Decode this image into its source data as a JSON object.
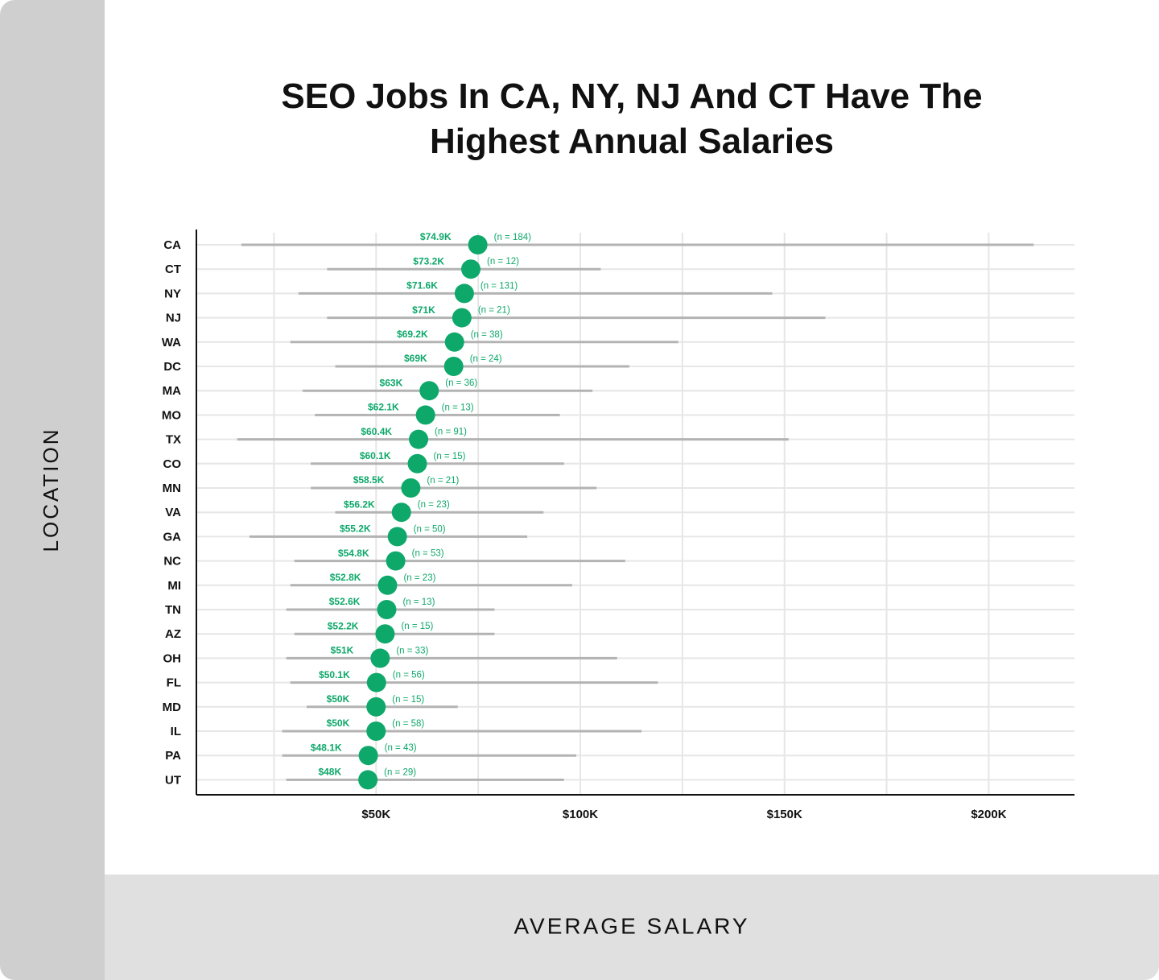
{
  "chart_data": {
    "type": "dot-range",
    "title": "SEO Jobs In CA, NY, NJ And CT Have The Highest Annual Salaries",
    "xlabel": "AVERAGE SALARY",
    "ylabel": "LOCATION",
    "categories": [
      "CA",
      "CT",
      "NY",
      "NJ",
      "WA",
      "DC",
      "MA",
      "MO",
      "TX",
      "CO",
      "MN",
      "VA",
      "GA",
      "NC",
      "MI",
      "TN",
      "AZ",
      "OH",
      "FL",
      "MD",
      "IL",
      "PA",
      "UT"
    ],
    "values": [
      74.9,
      73.2,
      71.6,
      71,
      69.2,
      69,
      63,
      62.1,
      60.4,
      60.1,
      58.5,
      56.2,
      55.2,
      54.8,
      52.8,
      52.6,
      52.2,
      51,
      50.1,
      50,
      50,
      48.1,
      48
    ],
    "value_labels": [
      "$74.9K",
      "$73.2K",
      "$71.6K",
      "$71K",
      "$69.2K",
      "$69K",
      "$63K",
      "$62.1K",
      "$60.4K",
      "$60.1K",
      "$58.5K",
      "$56.2K",
      "$55.2K",
      "$54.8K",
      "$52.8K",
      "$52.6K",
      "$52.2K",
      "$51K",
      "$50.1K",
      "$50K",
      "$50K",
      "$48.1K",
      "$48K"
    ],
    "n_labels": [
      "(n = 184)",
      "(n = 12)",
      "(n = 131)",
      "(n = 21)",
      "(n = 38)",
      "(n = 24)",
      "(n = 36)",
      "(n = 13)",
      "(n = 91)",
      "(n = 15)",
      "(n = 21)",
      "(n = 23)",
      "(n = 50)",
      "(n = 53)",
      "(n = 23)",
      "(n = 13)",
      "(n = 15)",
      "(n = 33)",
      "(n = 56)",
      "(n = 15)",
      "(n = 58)",
      "(n = 43)",
      "(n = 29)"
    ],
    "low": [
      17,
      38,
      31,
      38,
      29,
      40,
      32,
      35,
      16,
      34,
      34,
      40,
      19,
      30,
      29,
      28,
      30,
      28,
      29,
      33,
      27,
      27,
      28
    ],
    "high": [
      211,
      105,
      147,
      160,
      124,
      112,
      103,
      95,
      151,
      96,
      104,
      91,
      87,
      111,
      98,
      79,
      79,
      109,
      119,
      70,
      115,
      99,
      96
    ],
    "color": "#0ea86a",
    "range_color": "#b3b3b3",
    "xlim": [
      6,
      221
    ],
    "xticks": [
      {
        "value": 50,
        "label": "$50K"
      },
      {
        "value": 100,
        "label": "$100K"
      },
      {
        "value": 150,
        "label": "$150K"
      },
      {
        "value": 200,
        "label": "$200K"
      }
    ],
    "minor_xticks": [
      25,
      75,
      125,
      175
    ],
    "grid": true
  }
}
